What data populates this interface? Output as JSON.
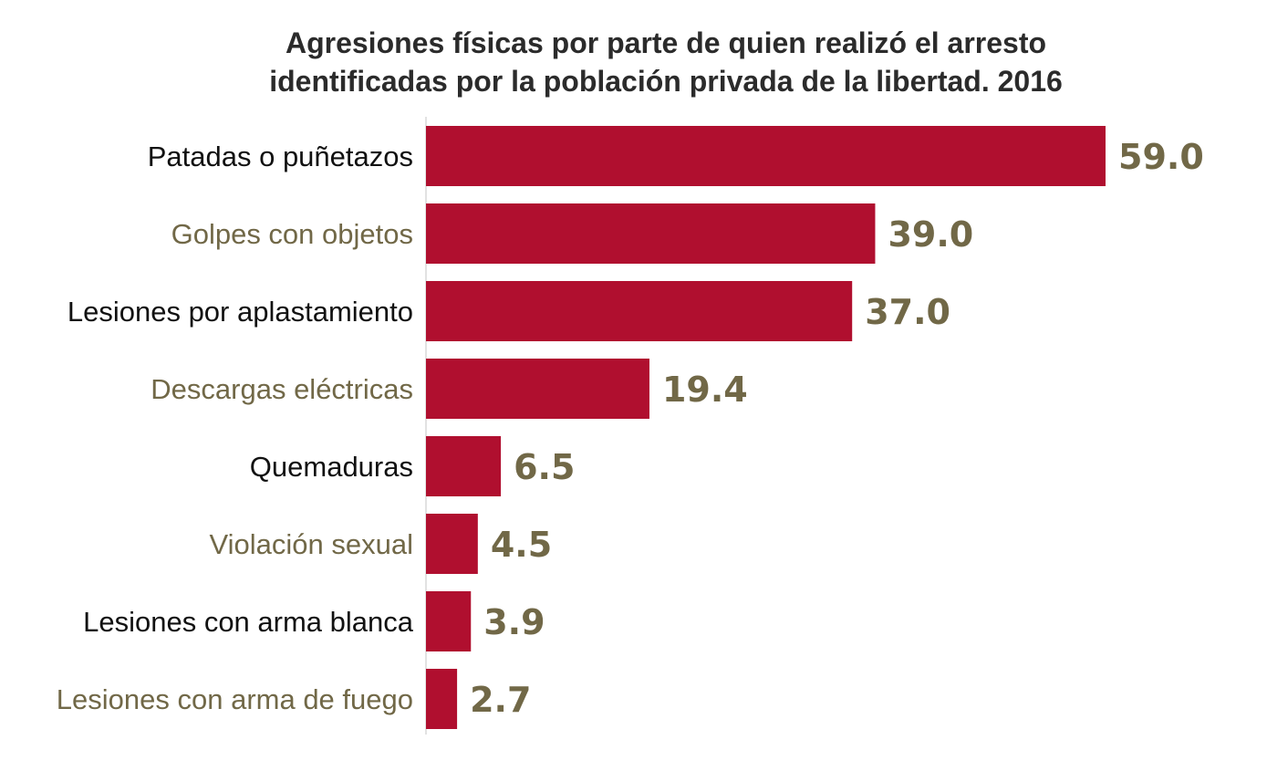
{
  "chart_data": {
    "type": "bar",
    "orientation": "horizontal",
    "title_lines": [
      "Agresiones físicas por parte de quien realizó el arresto",
      "identificadas por la población privada de la libertad. 2016"
    ],
    "categories": [
      "Patadas o puñetazos",
      "Golpes con objetos",
      "Lesiones por aplastamiento",
      "Descargas eléctricas",
      "Quemaduras",
      "Violación sexual",
      "Lesiones con arma blanca",
      "Lesiones con arma de fuego"
    ],
    "values": [
      59.0,
      39.0,
      37.0,
      19.4,
      6.5,
      4.5,
      3.9,
      2.7
    ],
    "value_labels": [
      "59.0",
      "39.0",
      "37.0",
      "19.4",
      "6.5",
      "4.5",
      "3.9",
      "2.7"
    ],
    "xlim": [
      0,
      59
    ],
    "grid": false,
    "legend": "none",
    "colors": {
      "bar": "#b00f2f",
      "value_label": "#716847",
      "label_dark": "#111111",
      "label_muted": "#716847",
      "axis": "#d9d9d9",
      "title": "#2b2b2b"
    }
  }
}
